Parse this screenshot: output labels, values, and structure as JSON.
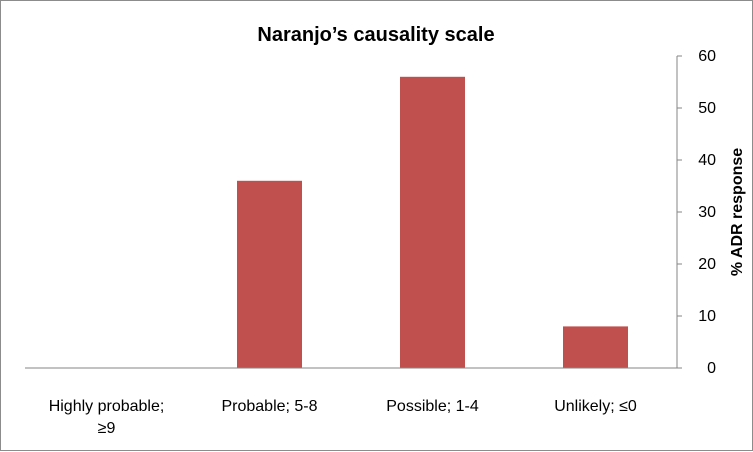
{
  "colors": {
    "bar": "#c0504d",
    "axis": "#868686"
  },
  "chart_data": {
    "type": "bar",
    "title": "Naranjo’s causality scale",
    "xlabel": "",
    "ylabel": "% ADR response",
    "categories": [
      "Highly probable; ≥9",
      "Probable; 5-8",
      "Possible; 1-4",
      "Unlikely; ≤0"
    ],
    "category_lines": [
      [
        "Highly probable;",
        "≥9"
      ],
      [
        "Probable; 5-8"
      ],
      [
        "Possible; 1-4"
      ],
      [
        "Unlikely; ≤0"
      ]
    ],
    "values": [
      0,
      36,
      56,
      8
    ],
    "ylim": [
      0,
      60
    ],
    "yticks": [
      0,
      10,
      20,
      30,
      40,
      50,
      60
    ],
    "y_axis_side": "right",
    "grid": false,
    "legend": "none"
  }
}
